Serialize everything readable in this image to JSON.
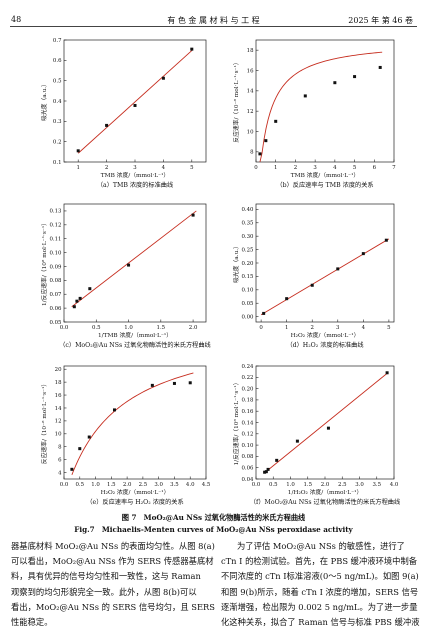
{
  "header": {
    "page_number": "48",
    "journal": "有 色 金 属 材 料 与 工 程",
    "issue": "2025 年 第 46 卷"
  },
  "figure": {
    "caption_cn": "图 7　MoO₂@Au NSs 过氧化物酶活性的米氏方程曲线",
    "caption_en": "Fig.7　Michaelis-Menten curves of MoO₂@Au NSs peroxidase activity"
  },
  "chart_data": [
    {
      "id": "a",
      "type": "scatter",
      "title": "",
      "caption": "（a）TMB 浓度的标准曲线",
      "xlabel": "TMB 浓度/（mmol·L⁻¹）",
      "ylabel": "吸光度（a.u.）",
      "xlim": [
        0.5,
        5.5
      ],
      "ylim": [
        0.1,
        0.7
      ],
      "xticks": [
        1,
        2,
        3,
        4,
        5
      ],
      "yticks": [
        0.1,
        0.2,
        0.3,
        0.4,
        0.5,
        0.6,
        0.7
      ],
      "x": [
        1,
        2,
        3,
        4,
        5
      ],
      "y": [
        0.155,
        0.28,
        0.378,
        0.512,
        0.655
      ],
      "fit": {
        "kind": "linear",
        "x": [
          1,
          5
        ],
        "y": [
          0.143,
          0.648
        ]
      }
    },
    {
      "id": "b",
      "type": "scatter",
      "title": "",
      "caption": "（b）反应速率与 TMB 浓度的关系",
      "xlabel": "TMB 浓度/（mmol·L⁻¹）",
      "ylabel": "反应速率/（10⁻⁸ mol·L⁻¹·s⁻¹）",
      "xlim": [
        0,
        7
      ],
      "ylim": [
        7,
        19
      ],
      "xticks": [
        0,
        1,
        2,
        3,
        4,
        5,
        6,
        7
      ],
      "yticks": [
        8,
        10,
        12,
        14,
        16,
        18
      ],
      "x": [
        0.2,
        0.5,
        1,
        2.5,
        4,
        5,
        6.3
      ],
      "y": [
        7.8,
        9.1,
        11,
        13.5,
        14.8,
        15.4,
        16.3
      ],
      "fit": {
        "kind": "michaelis-menten",
        "vmax": 19.0,
        "km": 0.43,
        "xrange": [
          0.2,
          6.4
        ]
      }
    },
    {
      "id": "c",
      "type": "scatter",
      "title": "",
      "caption": "（c）MoO₂@Au NSs 过氧化物酶活性的米氏方程曲线",
      "xlabel": "1/TMB 浓度/（mmol·L⁻¹）",
      "ylabel": "1/反应速率/（10⁸ mol·L⁻¹·s⁻¹）",
      "xlim": [
        0,
        2.2
      ],
      "ylim": [
        0.05,
        0.135
      ],
      "xticks": [
        0,
        0.5,
        1.0,
        1.5,
        2.0
      ],
      "yticks": [
        0.05,
        0.06,
        0.07,
        0.08,
        0.09,
        0.1,
        0.11,
        0.12,
        0.13
      ],
      "x": [
        0.16,
        0.2,
        0.25,
        0.4,
        1.0,
        2.0
      ],
      "y": [
        0.061,
        0.065,
        0.067,
        0.074,
        0.091,
        0.127
      ],
      "fit": {
        "kind": "linear",
        "x": [
          0.12,
          2.05
        ],
        "y": [
          0.061,
          0.13
        ]
      }
    },
    {
      "id": "d",
      "type": "scatter",
      "title": "",
      "caption": "（d）H₂O₂ 浓度的标准曲线",
      "xlabel": "H₂O₂ 浓度/（mmol·L⁻¹）",
      "ylabel": "吸光度（a.u.）",
      "xlim": [
        -0.2,
        5.2
      ],
      "ylim": [
        -0.02,
        0.42
      ],
      "xticks": [
        0,
        1,
        2,
        3,
        4,
        5
      ],
      "yticks": [
        0,
        0.05,
        0.1,
        0.15,
        0.2,
        0.25,
        0.3,
        0.35,
        0.4
      ],
      "x": [
        0.1,
        1,
        2,
        3,
        4,
        4.9
      ],
      "y": [
        0.012,
        0.067,
        0.117,
        0.178,
        0.235,
        0.285
      ],
      "fit": {
        "kind": "linear",
        "x": [
          0,
          5
        ],
        "y": [
          0.007,
          0.29
        ]
      }
    },
    {
      "id": "e",
      "type": "scatter",
      "title": "",
      "caption": "（e）反应速率与 H₂O₂ 浓度的关系",
      "xlabel": "H₂O₂ 浓度/（mmol·L⁻¹）",
      "ylabel": "反应速率/（10⁻⁸ mol·L⁻¹·s⁻¹）",
      "xlim": [
        0,
        4.5
      ],
      "ylim": [
        3,
        20.5
      ],
      "xticks": [
        0,
        0.5,
        1.0,
        1.5,
        2.0,
        2.5,
        3.0,
        3.5,
        4.0,
        4.5
      ],
      "yticks": [
        4,
        6,
        8,
        10,
        12,
        14,
        16,
        18,
        20
      ],
      "x": [
        0.25,
        0.5,
        0.8,
        1.6,
        2.8,
        3.5,
        4.0
      ],
      "y": [
        4.5,
        7.7,
        9.5,
        13.7,
        17.5,
        17.8,
        17.9
      ],
      "fit": {
        "kind": "michaelis-menten",
        "vmax": 27.0,
        "km": 1.6,
        "xrange": [
          0.25,
          4.1
        ]
      }
    },
    {
      "id": "f",
      "type": "scatter",
      "title": "",
      "caption": "（f）MoO₂@Au NSs 过氧化物酶活性的米氏方程曲线",
      "xlabel": "1/H₂O₂ 浓度/（mmol·L⁻¹）",
      "ylabel": "1/反应速率/（10⁸ mol·L⁻¹·s⁻¹）",
      "xlim": [
        0,
        4.0
      ],
      "ylim": [
        0.04,
        0.24
      ],
      "xticks": [
        0,
        0.5,
        1.0,
        1.5,
        2.0,
        2.5,
        3.0,
        3.5,
        4.0
      ],
      "yticks": [
        0.04,
        0.06,
        0.08,
        0.1,
        0.12,
        0.14,
        0.16,
        0.18,
        0.2,
        0.22,
        0.24
      ],
      "x": [
        0.25,
        0.3,
        0.35,
        0.6,
        1.2,
        2.1,
        3.8
      ],
      "y": [
        0.052,
        0.053,
        0.057,
        0.073,
        0.107,
        0.13,
        0.228
      ],
      "fit": {
        "kind": "linear",
        "x": [
          0.25,
          3.8
        ],
        "y": [
          0.051,
          0.227
        ]
      }
    }
  ],
  "body": {
    "left_lines": [
      "器基底材料 MoO₂@Au NSs 的表面均匀性。从图 8(a)",
      "可以看出，MoO₂@Au NSs 作为 SERS 传感器基底材",
      "料，具有优异的信号均匀性和一致性，这与 Raman",
      "观察到的均匀形貌完全一致。此外，从图 8(b)可以",
      "看出，MoO₂@Au NSs 的 SERS 信号均匀，且 SERS",
      "性能稳定。"
    ],
    "right_lines": [
      "为了评估 MoO₂@Au NSs 的敏感性，进行了",
      "cTn I 的检测试验。首先，在 PBS 缓冲液环境中制备",
      "不同浓度的 cTn I标准溶液(0～5 ng/mL)。如图 9(a)",
      "和图 9(b)所示，随着 cTn I 浓度的增加，SERS 信号",
      "逐渐增强，检出限为 0.002 5 ng/mL。为了进一步量",
      "化这种关系，拟合了 Raman 信号与标准 PBS 缓冲液"
    ]
  }
}
